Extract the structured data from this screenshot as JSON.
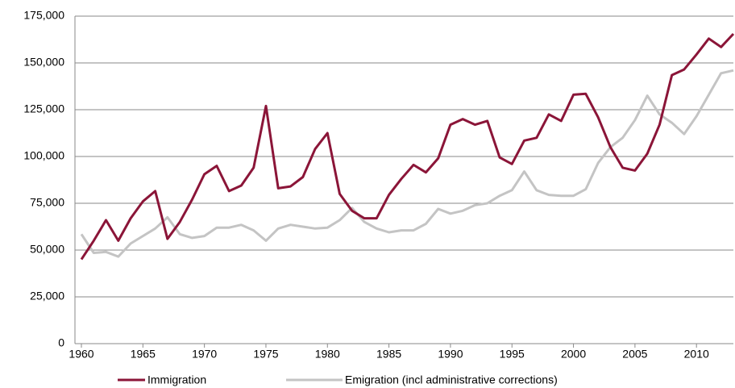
{
  "chart_data": {
    "type": "line",
    "x": [
      1960,
      1961,
      1962,
      1963,
      1964,
      1965,
      1966,
      1967,
      1968,
      1969,
      1970,
      1971,
      1972,
      1973,
      1974,
      1975,
      1976,
      1977,
      1978,
      1979,
      1980,
      1981,
      1982,
      1983,
      1984,
      1985,
      1986,
      1987,
      1988,
      1989,
      1990,
      1991,
      1992,
      1993,
      1994,
      1995,
      1996,
      1997,
      1998,
      1999,
      2000,
      2001,
      2002,
      2003,
      2004,
      2005,
      2006,
      2007,
      2008,
      2009,
      2010,
      2011,
      2012,
      2013
    ],
    "series": [
      {
        "name": "Immigration",
        "color": "#8b1538",
        "values": [
          45000,
          55000,
          66000,
          55000,
          67000,
          76000,
          81500,
          56000,
          65000,
          77000,
          90500,
          95000,
          81500,
          84500,
          94000,
          127000,
          83000,
          84000,
          89000,
          104000,
          112500,
          80000,
          71000,
          67000,
          67000,
          79500,
          88000,
          95500,
          91500,
          99000,
          117000,
          120000,
          117000,
          119000,
          99500,
          96000,
          108500,
          110000,
          122500,
          119000,
          133000,
          133500,
          121000,
          105000,
          94000,
          92500,
          101500,
          117000,
          143500,
          146500,
          154500,
          163000,
          158500,
          165500
        ]
      },
      {
        "name": "Emigration (incl administrative corrections)",
        "color": "#c4c4c4",
        "values": [
          58500,
          48500,
          49000,
          46500,
          53500,
          57500,
          61500,
          67500,
          58500,
          56500,
          57500,
          62000,
          62000,
          63500,
          60500,
          55000,
          61500,
          63500,
          62500,
          61500,
          62000,
          66000,
          72500,
          65000,
          61500,
          59500,
          60500,
          60500,
          64000,
          72000,
          69500,
          71000,
          74000,
          75000,
          79000,
          82000,
          92000,
          82000,
          79500,
          79000,
          79000,
          82500,
          96500,
          105000,
          110000,
          119500,
          132500,
          122500,
          118000,
          112000,
          121500,
          133000,
          144500,
          146000
        ]
      }
    ],
    "xlim": [
      1960,
      2013
    ],
    "xticks": [
      1960,
      1965,
      1970,
      1975,
      1980,
      1985,
      1990,
      1995,
      2000,
      2005,
      2010
    ],
    "ylim": [
      0,
      175000
    ],
    "yticks": [
      0,
      {
        "value": 25000,
        "label": "25,000"
      },
      {
        "value": 50000,
        "label": "50,000"
      },
      {
        "value": 75000,
        "label": "75,000"
      },
      {
        "value": 100000,
        "label": "100,000"
      },
      {
        "value": 125000,
        "label": "125,000"
      },
      {
        "value": 150000,
        "label": "150,000"
      },
      {
        "value": 175000,
        "label": "175,000"
      }
    ],
    "grid": true,
    "legend": "bottom"
  }
}
